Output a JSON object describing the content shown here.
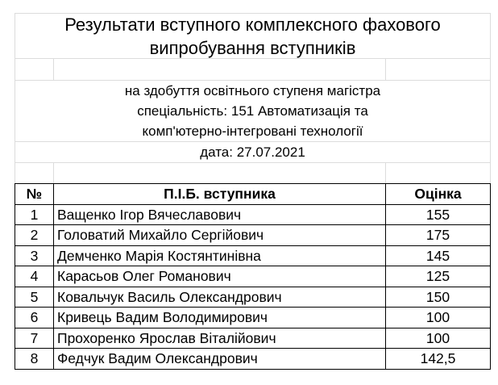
{
  "header": {
    "title": "Результати вступного комплексного фахового випробування вступників",
    "subtitle_lines": [
      "на здобуття освітнього ступеня магістра",
      "спеціальність: 151 Автоматизація та",
      "комп'ютерно-інтегровані технології"
    ],
    "date": "дата: 27.07.2021"
  },
  "table": {
    "columns": [
      "№",
      "П.І.Б. вступника",
      "Оцінка"
    ],
    "rows": [
      [
        "1",
        "Ващенко Ігор Вячеславович",
        "155"
      ],
      [
        "2",
        "Головатий Михайло Сергійович",
        "175"
      ],
      [
        "3",
        "Демченко Марія Костянтинівна",
        "145"
      ],
      [
        "4",
        "Карасьов Олег Романович",
        "125"
      ],
      [
        "5",
        "Ковальчук Василь Олександрович",
        "150"
      ],
      [
        "6",
        "Кривець Вадим Володимирович",
        "100"
      ],
      [
        "7",
        "Прохоренко Ярослав Віталійович",
        "100"
      ],
      [
        "8",
        "Федчук Вадим Олександрович",
        "142,5"
      ]
    ]
  }
}
